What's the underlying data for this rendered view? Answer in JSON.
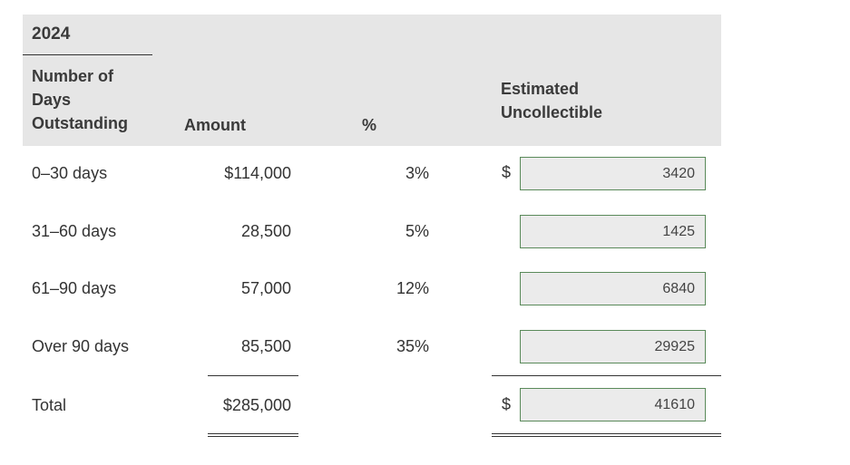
{
  "year": "2024",
  "headers": {
    "days": "Number of Days Outstanding",
    "amount": "Amount",
    "pct": "%",
    "estimated": "Estimated Uncollectible"
  },
  "currency_symbol": "$",
  "rows": [
    {
      "label": "0–30 days",
      "amount": "$114,000",
      "pct": "3%",
      "estimate": "3420"
    },
    {
      "label": "31–60 days",
      "amount": "28,500",
      "pct": "5%",
      "estimate": "1425"
    },
    {
      "label": "61–90 days",
      "amount": "57,000",
      "pct": "12%",
      "estimate": "6840"
    },
    {
      "label": "Over 90 days",
      "amount": "85,500",
      "pct": "35%",
      "estimate": "29925"
    }
  ],
  "total": {
    "label": "Total",
    "amount": "$285,000",
    "estimate": "41610"
  },
  "colors": {
    "header_bg": "#e6e6e6",
    "input_bg": "#ebebeb",
    "input_border": "#5a8a5a"
  }
}
